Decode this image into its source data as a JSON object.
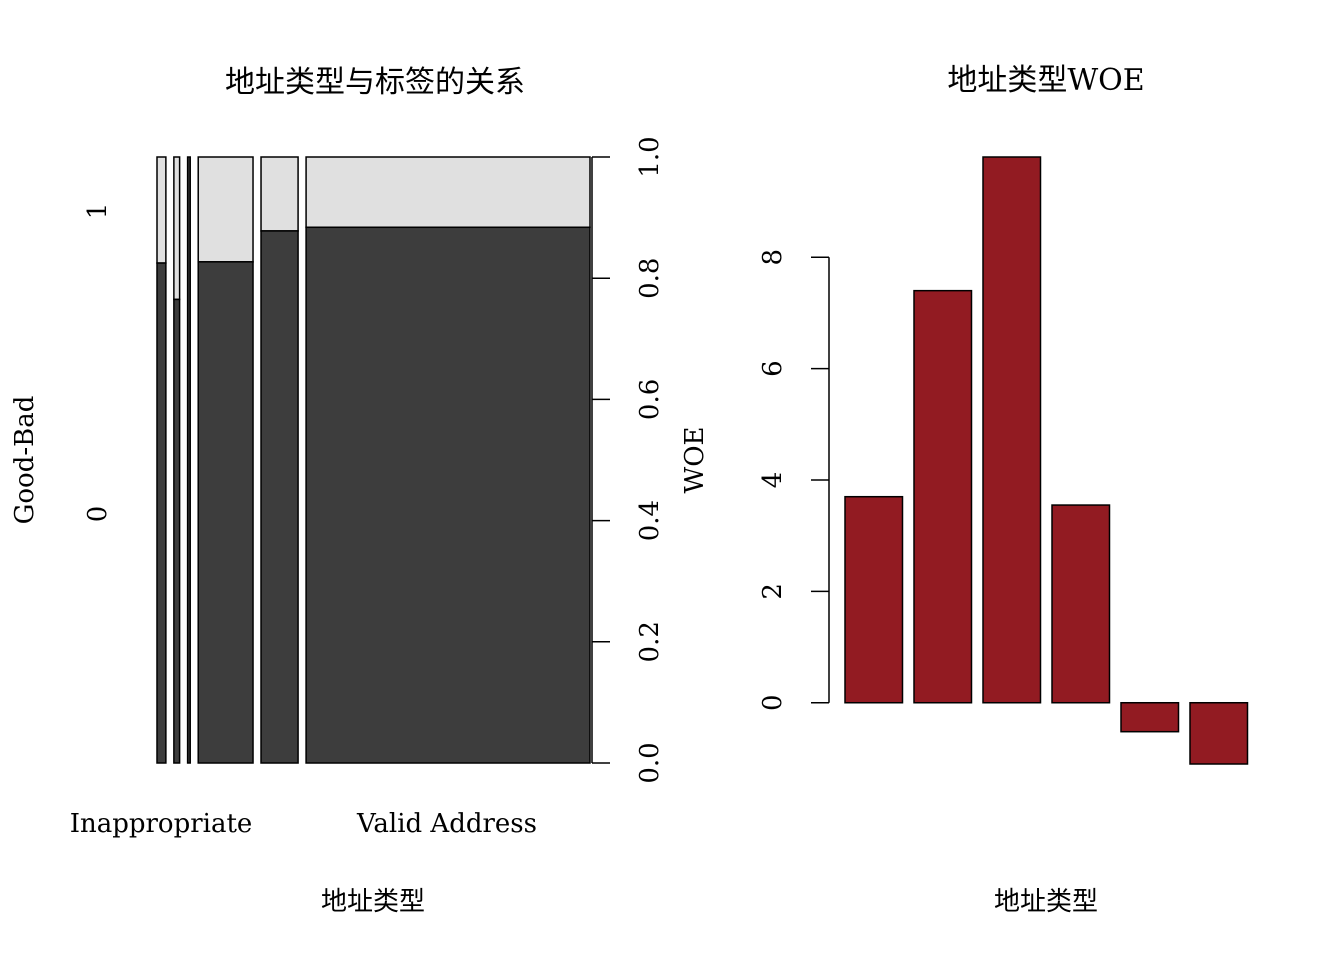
{
  "colors": {
    "bar_fill": "#921B22",
    "mosaic_bad": "#3D3D3D",
    "mosaic_good": "#E0E0E0",
    "stroke": "#000000",
    "background": "#FFFFFF"
  },
  "chart_data": [
    {
      "type": "mosaic",
      "title": "地址类型与标签的关系",
      "xlabel": "地址类型",
      "ylabel": "Good-Bad",
      "y2label": "WOE",
      "y_levels": [
        "0",
        "1"
      ],
      "x_labels_shown": [
        "Inappropriate",
        "",
        "",
        "",
        "Valid Address"
      ],
      "columns": [
        {
          "width_share": 0.017,
          "share_0": 0.825
        },
        {
          "width_share": 0.011,
          "share_0": 0.765
        },
        {
          "width_share": 0.005,
          "share_0": 1.0
        },
        {
          "width_share": 0.105,
          "share_0": 0.827
        },
        {
          "width_share": 0.071,
          "share_0": 0.878
        },
        {
          "width_share": 0.544,
          "share_0": 0.884
        }
      ],
      "y2_ticks": [
        "0.0",
        "0.2",
        "0.4",
        "0.6",
        "0.8",
        "1.0"
      ],
      "y2lim": [
        0,
        1
      ]
    },
    {
      "type": "bar",
      "title": "地址类型WOE",
      "xlabel": "地址类型",
      "ylabel": "",
      "categories": [
        "",
        "",
        "",
        "",
        "",
        ""
      ],
      "values": [
        3.7,
        7.4,
        9.8,
        3.55,
        -0.52,
        -1.1
      ],
      "yticks": [
        "0",
        "2",
        "4",
        "6",
        "8"
      ],
      "ylim": [
        -1.1,
        9.8
      ]
    }
  ]
}
